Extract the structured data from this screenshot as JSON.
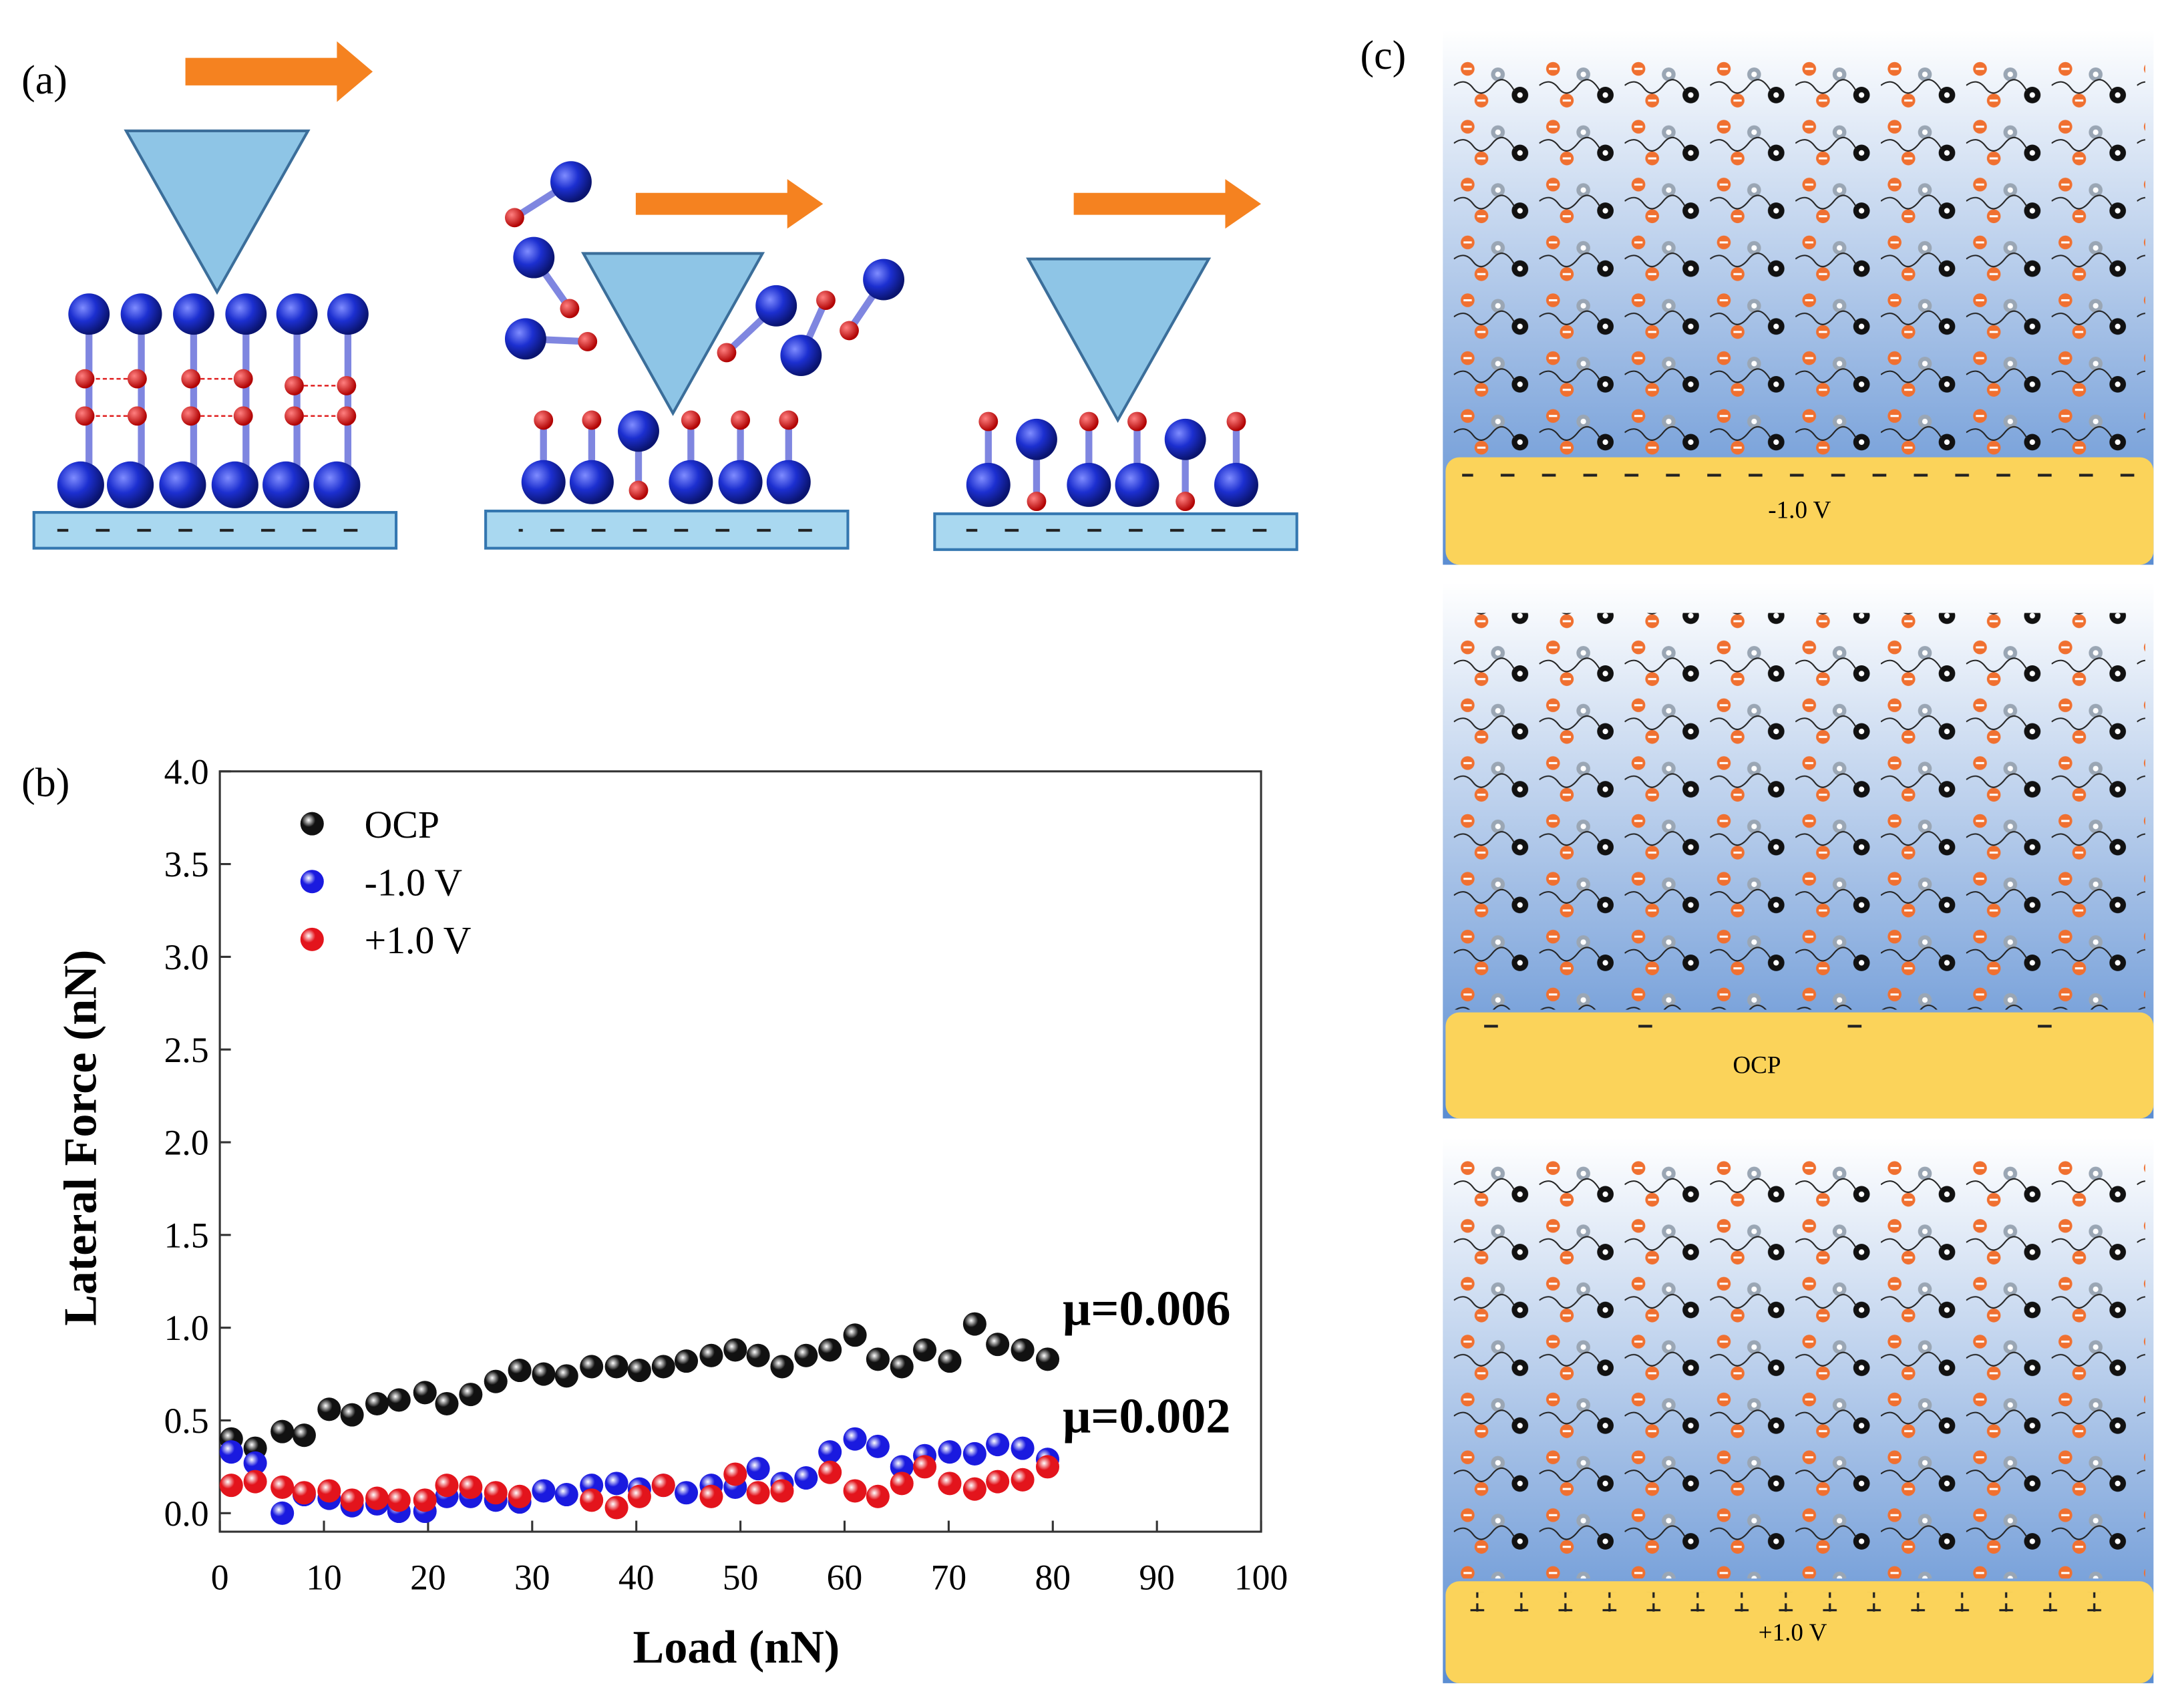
{
  "figure": {
    "panel_labels": [
      "(a)",
      "(b)",
      "(c)"
    ],
    "diagram_c_labels": [
      "-1.0 V",
      "OCP",
      "+1.0 V"
    ]
  },
  "chart_data": {
    "type": "scatter",
    "x_label": "Load (nN)",
    "y_label": "Lateral Force (nN)",
    "xlim": [
      0,
      100
    ],
    "ylim": [
      -0.1,
      4.0
    ],
    "xticks": [
      0,
      10,
      20,
      30,
      40,
      50,
      60,
      70,
      80,
      90,
      100
    ],
    "yticks": [
      {
        "value": 0,
        "label": "0.0"
      },
      0.5,
      {
        "value": 1,
        "label": "1.0"
      },
      1.5,
      {
        "value": 2,
        "label": "2.0"
      },
      2.5,
      {
        "value": 3,
        "label": "3.0"
      },
      3.5,
      {
        "value": 4,
        "label": "4.0"
      }
    ],
    "grid": false,
    "legend_position": "upper-left",
    "annotations": [
      "μ=0.006",
      "μ=0.002"
    ],
    "series": [
      {
        "name": "OCP",
        "color": "#111111",
        "x": [
          1.1,
          3.4,
          6,
          8.1,
          10.5,
          12.7,
          15.1,
          17.2,
          19.7,
          21.8,
          24.1,
          26.5,
          28.8,
          31.1,
          33.3,
          35.7,
          38.1,
          40.3,
          42.6,
          44.8,
          47.2,
          49.5,
          51.7,
          54,
          56.3,
          58.6,
          61,
          63.2,
          65.5,
          67.7,
          70.1,
          72.5,
          74.7,
          77.1,
          79.5
        ],
        "values": [
          0.4,
          0.35,
          0.44,
          0.42,
          0.56,
          0.53,
          0.59,
          0.61,
          0.65,
          0.59,
          0.64,
          0.71,
          0.77,
          0.75,
          0.74,
          0.79,
          0.79,
          0.77,
          0.79,
          0.82,
          0.85,
          0.88,
          0.85,
          0.79,
          0.85,
          0.88,
          0.96,
          0.83,
          0.79,
          0.88,
          0.82,
          1.02,
          0.91,
          0.88,
          0.83
        ]
      },
      {
        "name": " -1.0 V",
        "color": "#1a1adf",
        "x": [
          1.1,
          3.4,
          6,
          8.1,
          10.5,
          12.7,
          15.1,
          17.2,
          19.7,
          21.8,
          24.1,
          26.5,
          28.8,
          31.1,
          33.3,
          35.7,
          38.1,
          40.3,
          42.6,
          44.8,
          47.2,
          49.5,
          51.7,
          54,
          56.3,
          58.6,
          61,
          63.2,
          65.5,
          67.7,
          70.1,
          72.5,
          74.7,
          77.1,
          79.5
        ],
        "values": [
          0.33,
          0.27,
          0.0,
          0.1,
          0.08,
          0.04,
          0.05,
          0.01,
          0.01,
          0.09,
          0.09,
          0.07,
          0.06,
          0.12,
          0.1,
          0.15,
          0.16,
          0.13,
          0.15,
          0.11,
          0.15,
          0.14,
          0.24,
          0.16,
          0.19,
          0.33,
          0.4,
          0.36,
          0.25,
          0.31,
          0.33,
          0.32,
          0.37,
          0.35,
          0.29
        ]
      },
      {
        "name": "+1.0 V",
        "color": "#e3141c",
        "x": [
          1.1,
          3.4,
          6,
          8.1,
          10.5,
          12.7,
          15.1,
          17.2,
          19.7,
          21.8,
          24.1,
          26.5,
          28.8,
          35.7,
          38.1,
          40.3,
          42.6,
          47.2,
          49.5,
          51.7,
          54,
          58.6,
          61,
          63.2,
          65.5,
          67.7,
          70.1,
          72.5,
          74.7,
          77.1,
          79.5
        ],
        "values": [
          0.15,
          0.17,
          0.14,
          0.11,
          0.12,
          0.07,
          0.08,
          0.07,
          0.07,
          0.15,
          0.14,
          0.11,
          0.09,
          0.07,
          0.03,
          0.09,
          0.15,
          0.09,
          0.21,
          0.11,
          0.12,
          0.22,
          0.12,
          0.09,
          0.16,
          0.25,
          0.16,
          0.13,
          0.17,
          0.18,
          0.25
        ]
      }
    ]
  }
}
